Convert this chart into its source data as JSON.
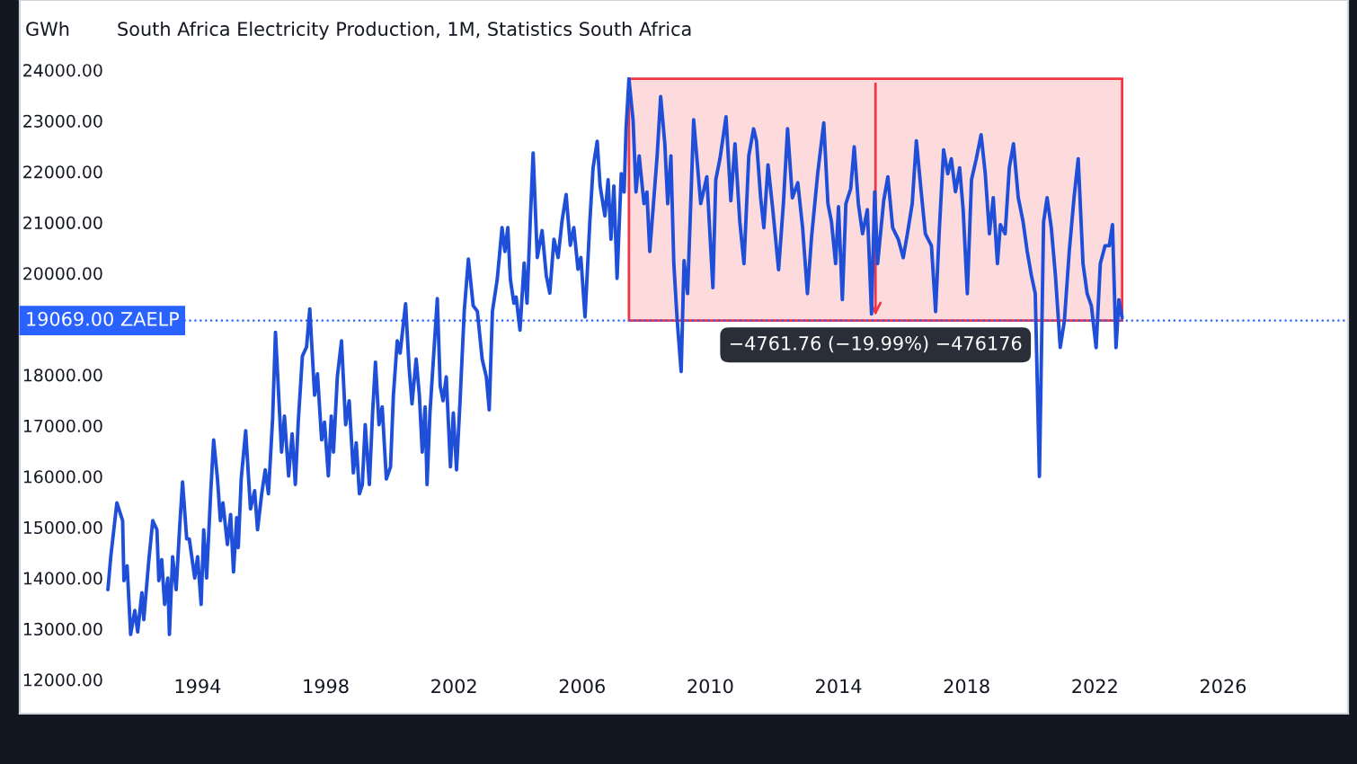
{
  "chart_data": {
    "type": "line",
    "title": "South Africa Electricity Production, 1M, Statistics South Africa",
    "ylabel": "GWh",
    "xlim": [
      1988.45,
      2029.9
    ],
    "ylim": [
      11330,
      25380
    ],
    "xticks": [
      1994,
      1998,
      2002,
      2006,
      2010,
      2014,
      2018,
      2022,
      2026
    ],
    "yticks": [
      {
        "value": 12000,
        "label": "12000.00"
      },
      {
        "value": 13000,
        "label": "13000.00"
      },
      {
        "value": 14000,
        "label": "14000.00"
      },
      {
        "value": 15000,
        "label": "15000.00"
      },
      {
        "value": 16000,
        "label": "16000.00"
      },
      {
        "value": 17000,
        "label": "17000.00"
      },
      {
        "value": 18000,
        "label": "18000.00"
      },
      {
        "value": 20000,
        "label": "20000.00"
      },
      {
        "value": 21000,
        "label": "21000.00"
      },
      {
        "value": 22000,
        "label": "22000.00"
      },
      {
        "value": 23000,
        "label": "23000.00"
      },
      {
        "value": 24000,
        "label": "24000.00"
      }
    ],
    "grid": false,
    "legend": false,
    "marker": "none",
    "line_style": "solid",
    "ref_lines": [
      {
        "axis": "y",
        "value": 19069,
        "label": "19069.00 ZAELP",
        "color": "#2962ff",
        "line_style": "dotted"
      }
    ],
    "bands": [
      {
        "axis": "y",
        "from": 19069,
        "to": 23830.76,
        "label": "−4761.76 (−19.99%) −476176",
        "color": "#f23645"
      }
    ],
    "series": [
      {
        "color": "#1f4fd8",
        "x": [
          1991.2,
          1991.29,
          1991.48,
          1991.66,
          1991.7,
          1991.8,
          1991.91,
          1992.04,
          1992.13,
          1992.26,
          1992.32,
          1992.47,
          1992.6,
          1992.73,
          1992.79,
          1992.88,
          1992.97,
          1993.07,
          1993.12,
          1993.22,
          1993.33,
          1993.44,
          1993.53,
          1993.66,
          1993.74,
          1993.91,
          1994.0,
          1994.11,
          1994.19,
          1994.28,
          1994.41,
          1994.5,
          1994.62,
          1994.71,
          1994.79,
          1994.93,
          1995.03,
          1995.12,
          1995.22,
          1995.27,
          1995.36,
          1995.5,
          1995.65,
          1995.78,
          1995.87,
          1996.0,
          1996.11,
          1996.21,
          1996.34,
          1996.43,
          1996.62,
          1996.71,
          1996.84,
          1996.95,
          1997.05,
          1997.14,
          1997.27,
          1997.4,
          1997.5,
          1997.65,
          1997.74,
          1997.87,
          1997.96,
          1998.08,
          1998.17,
          1998.24,
          1998.36,
          1998.49,
          1998.62,
          1998.73,
          1998.86,
          1998.95,
          1999.05,
          1999.14,
          1999.23,
          1999.36,
          1999.46,
          1999.55,
          1999.66,
          1999.76,
          1999.89,
          2000.02,
          2000.11,
          2000.23,
          2000.32,
          2000.49,
          2000.6,
          2000.69,
          2000.82,
          2000.92,
          2001.01,
          2001.1,
          2001.16,
          2001.25,
          2001.48,
          2001.57,
          2001.66,
          2001.76,
          2001.89,
          2001.98,
          2002.08,
          2002.19,
          2002.32,
          2002.45,
          2002.6,
          2002.73,
          2002.88,
          2003.01,
          2003.1,
          2003.2,
          2003.35,
          2003.5,
          2003.59,
          2003.68,
          2003.76,
          2003.87,
          2003.94,
          2004.06,
          2004.19,
          2004.28,
          2004.38,
          2004.47,
          2004.6,
          2004.75,
          2004.88,
          2004.99,
          2005.12,
          2005.25,
          2005.37,
          2005.5,
          2005.63,
          2005.74,
          2005.87,
          2005.96,
          2006.09,
          2006.24,
          2006.34,
          2006.47,
          2006.56,
          2006.71,
          2006.81,
          2006.9,
          2006.99,
          2007.09,
          2007.22,
          2007.31,
          2007.37,
          2007.46,
          2007.59,
          2007.68,
          2007.78,
          2007.93,
          2008.02,
          2008.11,
          2008.24,
          2008.34,
          2008.45,
          2008.58,
          2008.67,
          2008.77,
          2008.86,
          2008.96,
          2009.09,
          2009.18,
          2009.29,
          2009.48,
          2009.7,
          2009.89,
          2010.08,
          2010.17,
          2010.3,
          2010.49,
          2010.64,
          2010.77,
          2010.92,
          2011.05,
          2011.2,
          2011.35,
          2011.44,
          2011.57,
          2011.67,
          2011.8,
          2011.95,
          2012.13,
          2012.28,
          2012.41,
          2012.56,
          2012.73,
          2012.88,
          2013.03,
          2013.16,
          2013.35,
          2013.54,
          2013.67,
          2013.78,
          2013.91,
          2014.0,
          2014.12,
          2014.23,
          2014.38,
          2014.49,
          2014.62,
          2014.75,
          2014.9,
          2015.03,
          2015.13,
          2015.22,
          2015.41,
          2015.54,
          2015.69,
          2015.87,
          2016.02,
          2016.15,
          2016.3,
          2016.43,
          2016.58,
          2016.71,
          2016.9,
          2017.03,
          2017.14,
          2017.28,
          2017.41,
          2017.52,
          2017.65,
          2017.78,
          2017.89,
          2018.02,
          2018.15,
          2018.3,
          2018.45,
          2018.58,
          2018.71,
          2018.83,
          2018.96,
          2019.05,
          2019.2,
          2019.33,
          2019.46,
          2019.61,
          2019.76,
          2019.89,
          2020.02,
          2020.14,
          2020.27,
          2020.4,
          2020.51,
          2020.64,
          2020.77,
          2020.92,
          2021.05,
          2021.2,
          2021.35,
          2021.48,
          2021.63,
          2021.76,
          2021.89,
          2022.04,
          2022.17,
          2022.32,
          2022.45,
          2022.55,
          2022.66,
          2022.75,
          2022.85
        ],
        "values": [
          13770,
          14420,
          15480,
          15130,
          13950,
          14240,
          12890,
          13360,
          12940,
          13710,
          13180,
          14300,
          15130,
          14950,
          13950,
          14360,
          13480,
          14000,
          12890,
          14420,
          13770,
          15010,
          15890,
          14770,
          14770,
          14000,
          14420,
          13480,
          14950,
          14000,
          15700,
          16720,
          15950,
          15130,
          15480,
          14660,
          15250,
          14120,
          15190,
          14600,
          15950,
          16900,
          15360,
          15720,
          14950,
          15660,
          16130,
          15660,
          17130,
          18840,
          16480,
          17190,
          16010,
          16840,
          15840,
          17070,
          18370,
          18550,
          19300,
          17600,
          18020,
          16720,
          17070,
          16010,
          17190,
          16480,
          17960,
          18670,
          17020,
          17490,
          16070,
          16660,
          15660,
          15840,
          17020,
          15840,
          17250,
          18250,
          17020,
          17370,
          15950,
          16190,
          17600,
          18670,
          18430,
          19400,
          18140,
          17430,
          18310,
          17600,
          16480,
          17370,
          15840,
          17250,
          19500,
          17780,
          17490,
          17960,
          16190,
          17250,
          16130,
          17490,
          19250,
          20280,
          19360,
          19250,
          18310,
          17960,
          17310,
          19250,
          19880,
          20900,
          20430,
          20900,
          19880,
          19410,
          19530,
          18880,
          20200,
          19410,
          21020,
          22370,
          20310,
          20840,
          19960,
          19610,
          20670,
          20310,
          21020,
          21550,
          20550,
          20900,
          20080,
          20310,
          19140,
          21020,
          22070,
          22600,
          21720,
          21130,
          21840,
          20670,
          21720,
          19900,
          21960,
          21600,
          22840,
          23830,
          23010,
          21600,
          22310,
          21370,
          21600,
          20430,
          21490,
          22310,
          23480,
          22550,
          21370,
          22310,
          20200,
          19127,
          18065,
          20248,
          19600,
          23021,
          21369,
          21900,
          19717,
          21841,
          22254,
          23080,
          21428,
          22549,
          21015,
          20189,
          22313,
          22844,
          22608,
          21487,
          20897,
          22136,
          21251,
          20071,
          21369,
          22844,
          21487,
          21782,
          20897,
          19599,
          20720,
          21959,
          22962,
          21369,
          21015,
          20189,
          21310,
          19481,
          21369,
          21664,
          22490,
          21369,
          20779,
          21251,
          19200,
          21605,
          20189,
          21428,
          21900,
          20897,
          20661,
          20307,
          20779,
          21369,
          22608,
          21605,
          20779,
          20543,
          19245,
          20779,
          22431,
          21959,
          22254,
          21605,
          22077,
          21251,
          19599,
          21841,
          22254,
          22726,
          21959,
          20779,
          21487,
          20189,
          20956,
          20779,
          22077,
          22549,
          21487,
          21015,
          20425,
          19953,
          19599,
          16000,
          21015,
          21487,
          20897,
          19953,
          18540,
          19068,
          20425,
          21487,
          22254,
          20189,
          19599,
          19363,
          18537,
          20189,
          20543,
          20543,
          20956,
          18537,
          19481,
          19127
        ]
      }
    ]
  }
}
